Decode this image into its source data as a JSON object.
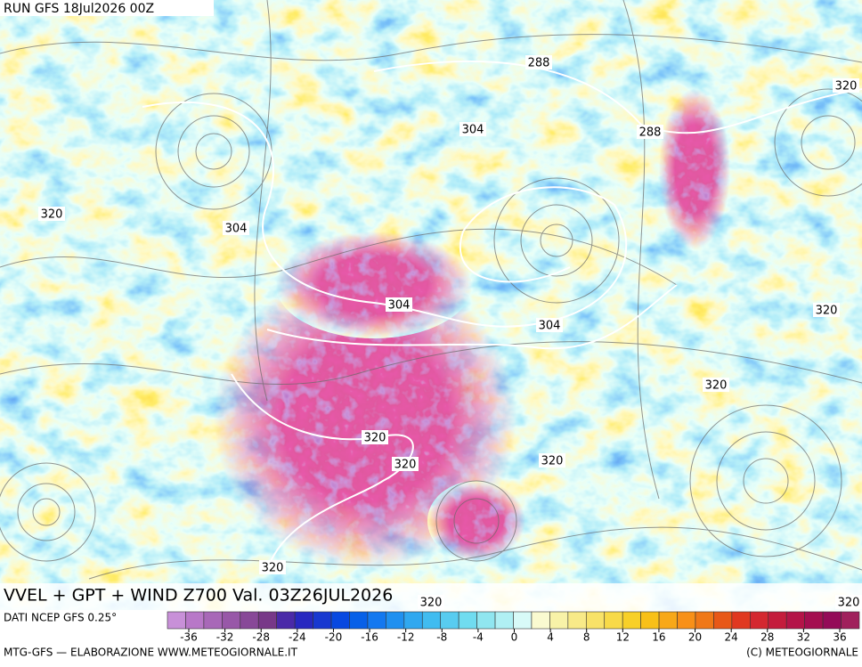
{
  "header": {
    "run": "RUN GFS 18Jul2026 00Z"
  },
  "map": {
    "title": "VVEL + GPT + WIND Z700 Val. 03Z26JUL2026",
    "contour_labels": [
      288,
      288,
      320,
      304,
      320,
      304,
      304,
      304,
      320,
      320,
      320,
      320,
      320,
      320,
      320,
      320
    ]
  },
  "legend": {
    "source": "DATI NCEP GFS 0.25°",
    "ticks": [
      -36,
      -32,
      -28,
      -24,
      -20,
      -16,
      -12,
      -8,
      -4,
      0,
      4,
      8,
      12,
      16,
      20,
      24,
      28,
      32,
      36
    ],
    "colors": [
      "#c890d8",
      "#b878c8",
      "#a868b8",
      "#9858a8",
      "#884898",
      "#783888",
      "#4a2aa8",
      "#2828c0",
      "#1838d0",
      "#0848e0",
      "#0860e8",
      "#1478f0",
      "#2090f0",
      "#30a8f0",
      "#40bcf0",
      "#58ccf0",
      "#70dcf0",
      "#90e6f0",
      "#b0f0f4",
      "#d8faf8",
      "#fafad0",
      "#f8f2a8",
      "#f8ea88",
      "#f8e268",
      "#f8da48",
      "#f8d028",
      "#f8c018",
      "#f8a818",
      "#f89018",
      "#f07818",
      "#e85818",
      "#e03820",
      "#d42830",
      "#c41c3c",
      "#b41448",
      "#a40e50",
      "#940a58",
      "#a0205c"
    ]
  },
  "footer": {
    "left": "MTG-GFS — ELABORAZIONE WWW.METEOGIORNALE.IT",
    "right": "(C) METEOGIORNALE"
  }
}
